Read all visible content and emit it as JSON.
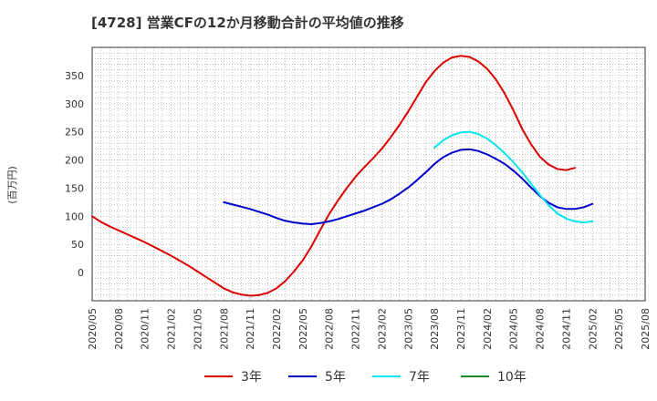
{
  "chart_data": {
    "type": "line",
    "title": "[4728]  営業CFの12か月移動合計の平均値の推移",
    "ylabel": "(百万円)",
    "xlabel": "",
    "ylim": [
      -50,
      400
    ],
    "yticks": [
      0,
      50,
      100,
      150,
      200,
      250,
      300,
      350
    ],
    "xlim": [
      "2020-05",
      "2025-08"
    ],
    "xtick_labels": [
      "2020/05",
      "2020/08",
      "2020/11",
      "2021/02",
      "2021/05",
      "2021/08",
      "2021/11",
      "2022/02",
      "2022/05",
      "2022/08",
      "2022/11",
      "2023/02",
      "2023/05",
      "2023/08",
      "2023/11",
      "2024/02",
      "2024/05",
      "2024/08",
      "2024/11",
      "2025/02",
      "2025/05",
      "2025/08"
    ],
    "grid": true,
    "legend_position": "bottom",
    "series": [
      {
        "name": "3年",
        "color": "#dd0000",
        "points": [
          [
            "2020-05",
            100
          ],
          [
            "2020-06",
            90
          ],
          [
            "2020-07",
            82
          ],
          [
            "2020-08",
            75
          ],
          [
            "2020-09",
            68
          ],
          [
            "2020-10",
            61
          ],
          [
            "2020-11",
            54
          ],
          [
            "2020-12",
            46
          ],
          [
            "2021-01",
            38
          ],
          [
            "2021-02",
            30
          ],
          [
            "2021-03",
            21
          ],
          [
            "2021-04",
            12
          ],
          [
            "2021-05",
            2
          ],
          [
            "2021-06",
            -8
          ],
          [
            "2021-07",
            -18
          ],
          [
            "2021-08",
            -28
          ],
          [
            "2021-09",
            -35
          ],
          [
            "2021-10",
            -39
          ],
          [
            "2021-11",
            -41
          ],
          [
            "2021-12",
            -40
          ],
          [
            "2022-01",
            -36
          ],
          [
            "2022-02",
            -28
          ],
          [
            "2022-03",
            -15
          ],
          [
            "2022-04",
            2
          ],
          [
            "2022-05",
            22
          ],
          [
            "2022-06",
            47
          ],
          [
            "2022-07",
            76
          ],
          [
            "2022-08",
            104
          ],
          [
            "2022-09",
            128
          ],
          [
            "2022-10",
            150
          ],
          [
            "2022-11",
            170
          ],
          [
            "2022-12",
            187
          ],
          [
            "2023-01",
            203
          ],
          [
            "2023-02",
            220
          ],
          [
            "2023-03",
            240
          ],
          [
            "2023-04",
            262
          ],
          [
            "2023-05",
            286
          ],
          [
            "2023-06",
            312
          ],
          [
            "2023-07",
            338
          ],
          [
            "2023-08",
            358
          ],
          [
            "2023-09",
            373
          ],
          [
            "2023-10",
            382
          ],
          [
            "2023-11",
            385
          ],
          [
            "2023-12",
            383
          ],
          [
            "2024-01",
            375
          ],
          [
            "2024-02",
            362
          ],
          [
            "2024-03",
            343
          ],
          [
            "2024-04",
            318
          ],
          [
            "2024-05",
            288
          ],
          [
            "2024-06",
            255
          ],
          [
            "2024-07",
            228
          ],
          [
            "2024-08",
            206
          ],
          [
            "2024-09",
            192
          ],
          [
            "2024-10",
            184
          ],
          [
            "2024-11",
            182
          ],
          [
            "2024-12",
            186
          ]
        ]
      },
      {
        "name": "5年",
        "color": "#0000cc",
        "points": [
          [
            "2021-08",
            125
          ],
          [
            "2021-09",
            121
          ],
          [
            "2021-10",
            117
          ],
          [
            "2021-11",
            113
          ],
          [
            "2021-12",
            108
          ],
          [
            "2022-01",
            103
          ],
          [
            "2022-02",
            97
          ],
          [
            "2022-03",
            92
          ],
          [
            "2022-04",
            89
          ],
          [
            "2022-05",
            87
          ],
          [
            "2022-06",
            86
          ],
          [
            "2022-07",
            88
          ],
          [
            "2022-08",
            91
          ],
          [
            "2022-09",
            95
          ],
          [
            "2022-10",
            100
          ],
          [
            "2022-11",
            105
          ],
          [
            "2022-12",
            110
          ],
          [
            "2023-01",
            116
          ],
          [
            "2023-02",
            122
          ],
          [
            "2023-03",
            130
          ],
          [
            "2023-04",
            140
          ],
          [
            "2023-05",
            151
          ],
          [
            "2023-06",
            164
          ],
          [
            "2023-07",
            178
          ],
          [
            "2023-08",
            193
          ],
          [
            "2023-09",
            205
          ],
          [
            "2023-10",
            213
          ],
          [
            "2023-11",
            218
          ],
          [
            "2023-12",
            219
          ],
          [
            "2024-01",
            216
          ],
          [
            "2024-02",
            210
          ],
          [
            "2024-03",
            202
          ],
          [
            "2024-04",
            193
          ],
          [
            "2024-05",
            181
          ],
          [
            "2024-06",
            167
          ],
          [
            "2024-07",
            151
          ],
          [
            "2024-08",
            136
          ],
          [
            "2024-09",
            124
          ],
          [
            "2024-10",
            116
          ],
          [
            "2024-11",
            113
          ],
          [
            "2024-12",
            113
          ],
          [
            "2025-01",
            116
          ],
          [
            "2025-02",
            122
          ]
        ]
      },
      {
        "name": "7年",
        "color": "#00e5ee",
        "points": [
          [
            "2023-08",
            222
          ],
          [
            "2023-09",
            235
          ],
          [
            "2023-10",
            244
          ],
          [
            "2023-11",
            249
          ],
          [
            "2023-12",
            250
          ],
          [
            "2024-01",
            246
          ],
          [
            "2024-02",
            238
          ],
          [
            "2024-03",
            226
          ],
          [
            "2024-04",
            212
          ],
          [
            "2024-05",
            196
          ],
          [
            "2024-06",
            178
          ],
          [
            "2024-07",
            158
          ],
          [
            "2024-08",
            138
          ],
          [
            "2024-09",
            120
          ],
          [
            "2024-10",
            105
          ],
          [
            "2024-11",
            96
          ],
          [
            "2024-12",
            91
          ],
          [
            "2025-01",
            89
          ],
          [
            "2025-02",
            91
          ]
        ]
      },
      {
        "name": "10年",
        "color": "#228822",
        "points": []
      }
    ]
  }
}
